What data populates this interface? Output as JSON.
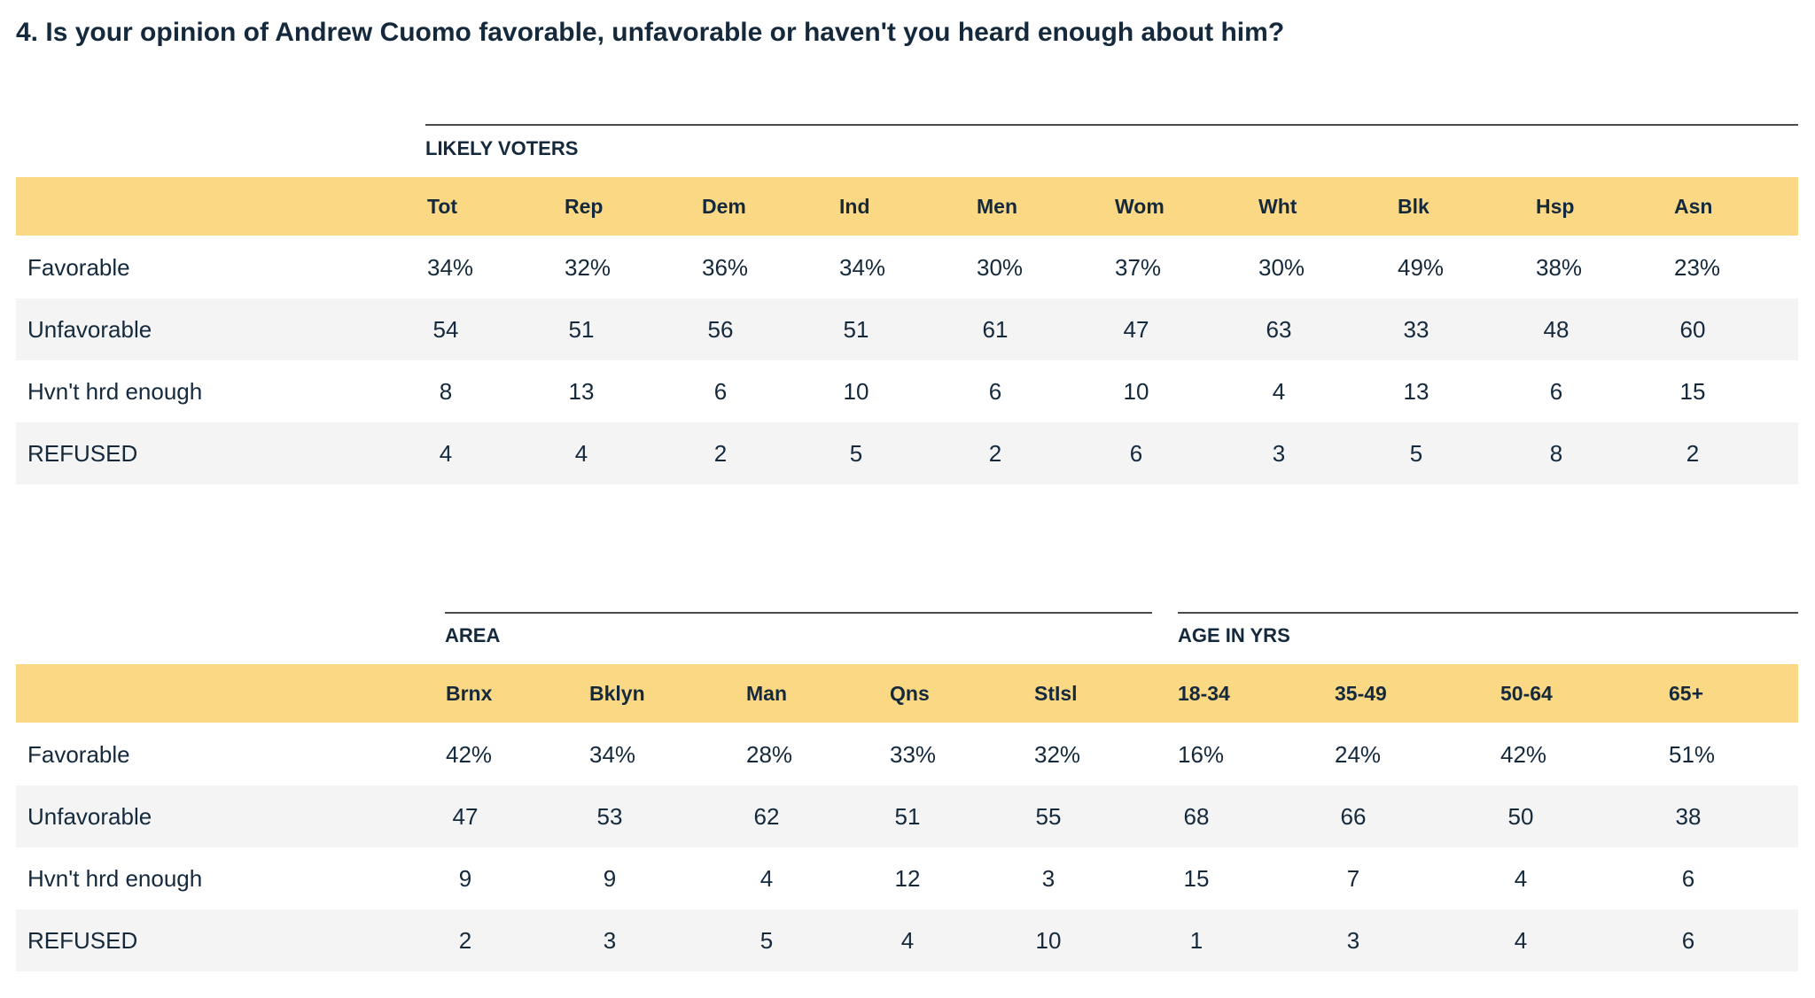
{
  "question": "4. Is your opinion of Andrew Cuomo favorable, unfavorable or haven't you heard enough about him?",
  "table1": {
    "group": "LIKELY VOTERS",
    "columns": [
      "Tot",
      "Rep",
      "Dem",
      "Ind",
      "Men",
      "Wom",
      "Wht",
      "Blk",
      "Hsp",
      "Asn"
    ],
    "rows": [
      {
        "label": "Favorable",
        "values": [
          "34%",
          "32%",
          "36%",
          "34%",
          "30%",
          "37%",
          "30%",
          "49%",
          "38%",
          "23%"
        ]
      },
      {
        "label": "Unfavorable",
        "values": [
          "54",
          "51",
          "56",
          "51",
          "61",
          "47",
          "63",
          "33",
          "48",
          "60"
        ]
      },
      {
        "label": "Hvn't hrd enough",
        "values": [
          "8",
          "13",
          "6",
          "10",
          "6",
          "10",
          "4",
          "13",
          "6",
          "15"
        ]
      },
      {
        "label": "REFUSED",
        "values": [
          "4",
          "4",
          "2",
          "5",
          "2",
          "6",
          "3",
          "5",
          "8",
          "2"
        ]
      }
    ]
  },
  "table2": {
    "group_area": "AREA",
    "group_age": "AGE IN YRS",
    "columns": [
      "Brnx",
      "Bklyn",
      "Man",
      "Qns",
      "StIsl",
      "18-34",
      "35-49",
      "50-64",
      "65+"
    ],
    "rows": [
      {
        "label": "Favorable",
        "values": [
          "42%",
          "34%",
          "28%",
          "33%",
          "32%",
          "16%",
          "24%",
          "42%",
          "51%"
        ]
      },
      {
        "label": "Unfavorable",
        "values": [
          "47",
          "53",
          "62",
          "51",
          "55",
          "68",
          "66",
          "50",
          "38"
        ]
      },
      {
        "label": "Hvn't hrd enough",
        "values": [
          "9",
          "9",
          "4",
          "12",
          "3",
          "15",
          "7",
          "4",
          "6"
        ]
      },
      {
        "label": "REFUSED",
        "values": [
          "2",
          "3",
          "5",
          "4",
          "10",
          "1",
          "3",
          "4",
          "6"
        ]
      }
    ]
  }
}
